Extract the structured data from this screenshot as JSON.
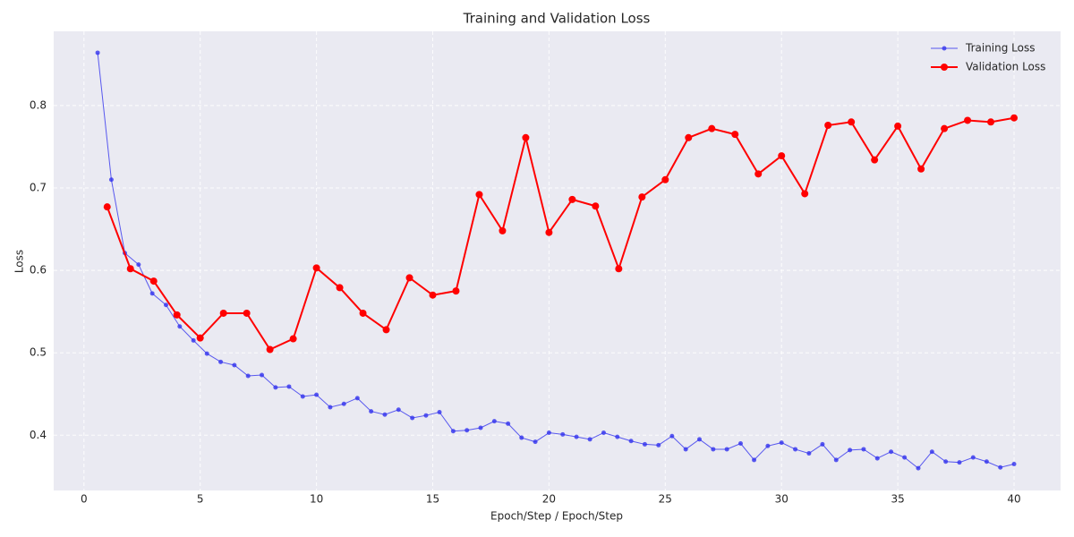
{
  "chart_data": {
    "type": "line",
    "title": "Training and Validation Loss",
    "x_label": "Epoch/Step / Epoch/Step",
    "y_label": "Loss",
    "xlim": [
      -1.3,
      42
    ],
    "ylim": [
      0.333,
      0.89
    ],
    "xticks": [
      0,
      5,
      10,
      15,
      20,
      25,
      30,
      35,
      40
    ],
    "yticks": [
      0.4,
      0.5,
      0.6,
      0.7,
      0.8
    ],
    "grid": true,
    "legend": "upper right",
    "series": [
      {
        "name": "Training Loss",
        "color": "#3333ee",
        "x": [
          0.59,
          1.18,
          1.76,
          2.35,
          2.94,
          3.53,
          4.12,
          4.71,
          5.29,
          5.88,
          6.47,
          7.06,
          7.65,
          8.24,
          8.82,
          9.41,
          10.0,
          10.59,
          11.18,
          11.76,
          12.35,
          12.94,
          13.53,
          14.12,
          14.71,
          15.29,
          15.88,
          16.47,
          17.06,
          17.65,
          18.24,
          18.82,
          19.41,
          20.0,
          20.59,
          21.18,
          21.76,
          22.35,
          22.94,
          23.53,
          24.12,
          24.71,
          25.29,
          25.88,
          26.47,
          27.06,
          27.65,
          28.24,
          28.82,
          29.41,
          30.0,
          30.59,
          31.18,
          31.76,
          32.35,
          32.94,
          33.53,
          34.12,
          34.71,
          35.29,
          35.88,
          36.47,
          37.06,
          37.65,
          38.24,
          38.82,
          39.41,
          40.0
        ],
        "values": [
          0.864,
          0.71,
          0.621,
          0.607,
          0.572,
          0.558,
          0.532,
          0.515,
          0.499,
          0.489,
          0.485,
          0.472,
          0.473,
          0.458,
          0.459,
          0.447,
          0.449,
          0.434,
          0.438,
          0.445,
          0.429,
          0.425,
          0.431,
          0.421,
          0.424,
          0.428,
          0.405,
          0.406,
          0.409,
          0.417,
          0.414,
          0.397,
          0.392,
          0.403,
          0.401,
          0.398,
          0.395,
          0.403,
          0.398,
          0.393,
          0.389,
          0.388,
          0.399,
          0.383,
          0.395,
          0.383,
          0.383,
          0.39,
          0.37,
          0.387,
          0.391,
          0.383,
          0.378,
          0.389,
          0.37,
          0.382,
          0.383,
          0.372,
          0.38,
          0.373,
          0.36,
          0.38,
          0.368,
          0.367,
          0.373,
          0.368,
          0.361,
          0.365
        ]
      },
      {
        "name": "Validation Loss",
        "color": "#ff0000",
        "x": [
          1,
          2,
          3,
          4,
          5,
          6,
          7,
          8,
          9,
          10,
          11,
          12,
          13,
          14,
          15,
          16,
          17,
          18,
          19,
          20,
          21,
          22,
          23,
          24,
          25,
          26,
          27,
          28,
          29,
          30,
          31,
          32,
          33,
          34,
          35,
          36,
          37,
          38,
          39,
          40
        ],
        "values": [
          0.677,
          0.602,
          0.587,
          0.546,
          0.518,
          0.548,
          0.548,
          0.504,
          0.517,
          0.603,
          0.579,
          0.548,
          0.528,
          0.591,
          0.57,
          0.575,
          0.692,
          0.648,
          0.761,
          0.646,
          0.686,
          0.678,
          0.602,
          0.689,
          0.71,
          0.761,
          0.772,
          0.765,
          0.717,
          0.739,
          0.693,
          0.776,
          0.78,
          0.734,
          0.775,
          0.723,
          0.772,
          0.782,
          0.78,
          0.785
        ]
      }
    ]
  }
}
